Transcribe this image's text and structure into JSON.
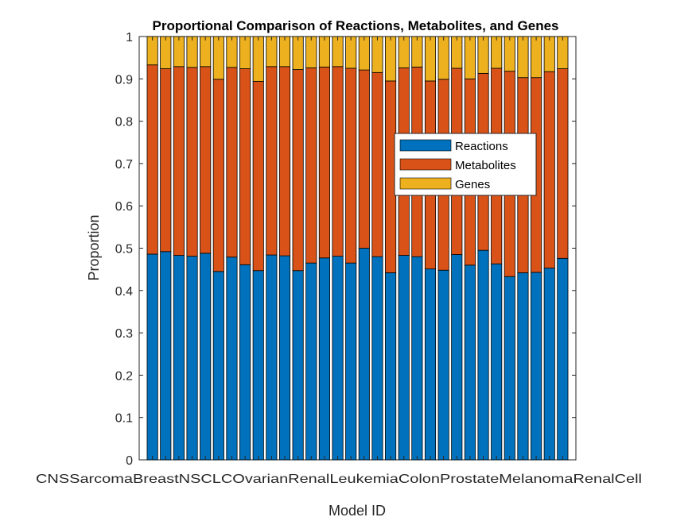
{
  "chart_data": {
    "type": "bar",
    "stacked": true,
    "title": "Proportional Comparison of Reactions, Metabolites, and Genes",
    "xlabel": "Model ID",
    "ylabel": "Proportion",
    "ylim": [
      0,
      1
    ],
    "yticks": [
      "0",
      "0.1",
      "0.2",
      "0.3",
      "0.4",
      "0.5",
      "0.6",
      "0.7",
      "0.8",
      "0.9",
      "1"
    ],
    "grid": false,
    "legend_position": "center-right",
    "x_tick_text": "CNSSarcomaBreastNSCLCOvarianRenalLeukemiaColonProstateMelanomaRenalCell",
    "series": [
      {
        "name": "Reactions",
        "color": "#0072BD",
        "values": [
          0.486,
          0.492,
          0.483,
          0.481,
          0.488,
          0.445,
          0.479,
          0.461,
          0.447,
          0.484,
          0.482,
          0.447,
          0.465,
          0.477,
          0.481,
          0.465,
          0.5,
          0.48,
          0.442,
          0.483,
          0.48,
          0.451,
          0.448,
          0.485,
          0.46,
          0.495,
          0.463,
          0.433,
          0.442,
          0.443,
          0.453,
          0.476
        ]
      },
      {
        "name": "Metabolites",
        "color": "#D95319",
        "values": [
          0.447,
          0.432,
          0.446,
          0.446,
          0.441,
          0.454,
          0.448,
          0.463,
          0.447,
          0.445,
          0.447,
          0.475,
          0.461,
          0.451,
          0.448,
          0.46,
          0.421,
          0.435,
          0.453,
          0.443,
          0.448,
          0.444,
          0.451,
          0.44,
          0.44,
          0.418,
          0.462,
          0.485,
          0.461,
          0.46,
          0.464,
          0.448
        ]
      },
      {
        "name": "Genes",
        "color": "#EDB120",
        "values": [
          0.067,
          0.076,
          0.071,
          0.073,
          0.071,
          0.101,
          0.073,
          0.076,
          0.106,
          0.071,
          0.071,
          0.078,
          0.074,
          0.072,
          0.071,
          0.075,
          0.079,
          0.085,
          0.105,
          0.074,
          0.072,
          0.105,
          0.101,
          0.075,
          0.1,
          0.087,
          0.075,
          0.082,
          0.097,
          0.097,
          0.083,
          0.076
        ]
      }
    ]
  }
}
